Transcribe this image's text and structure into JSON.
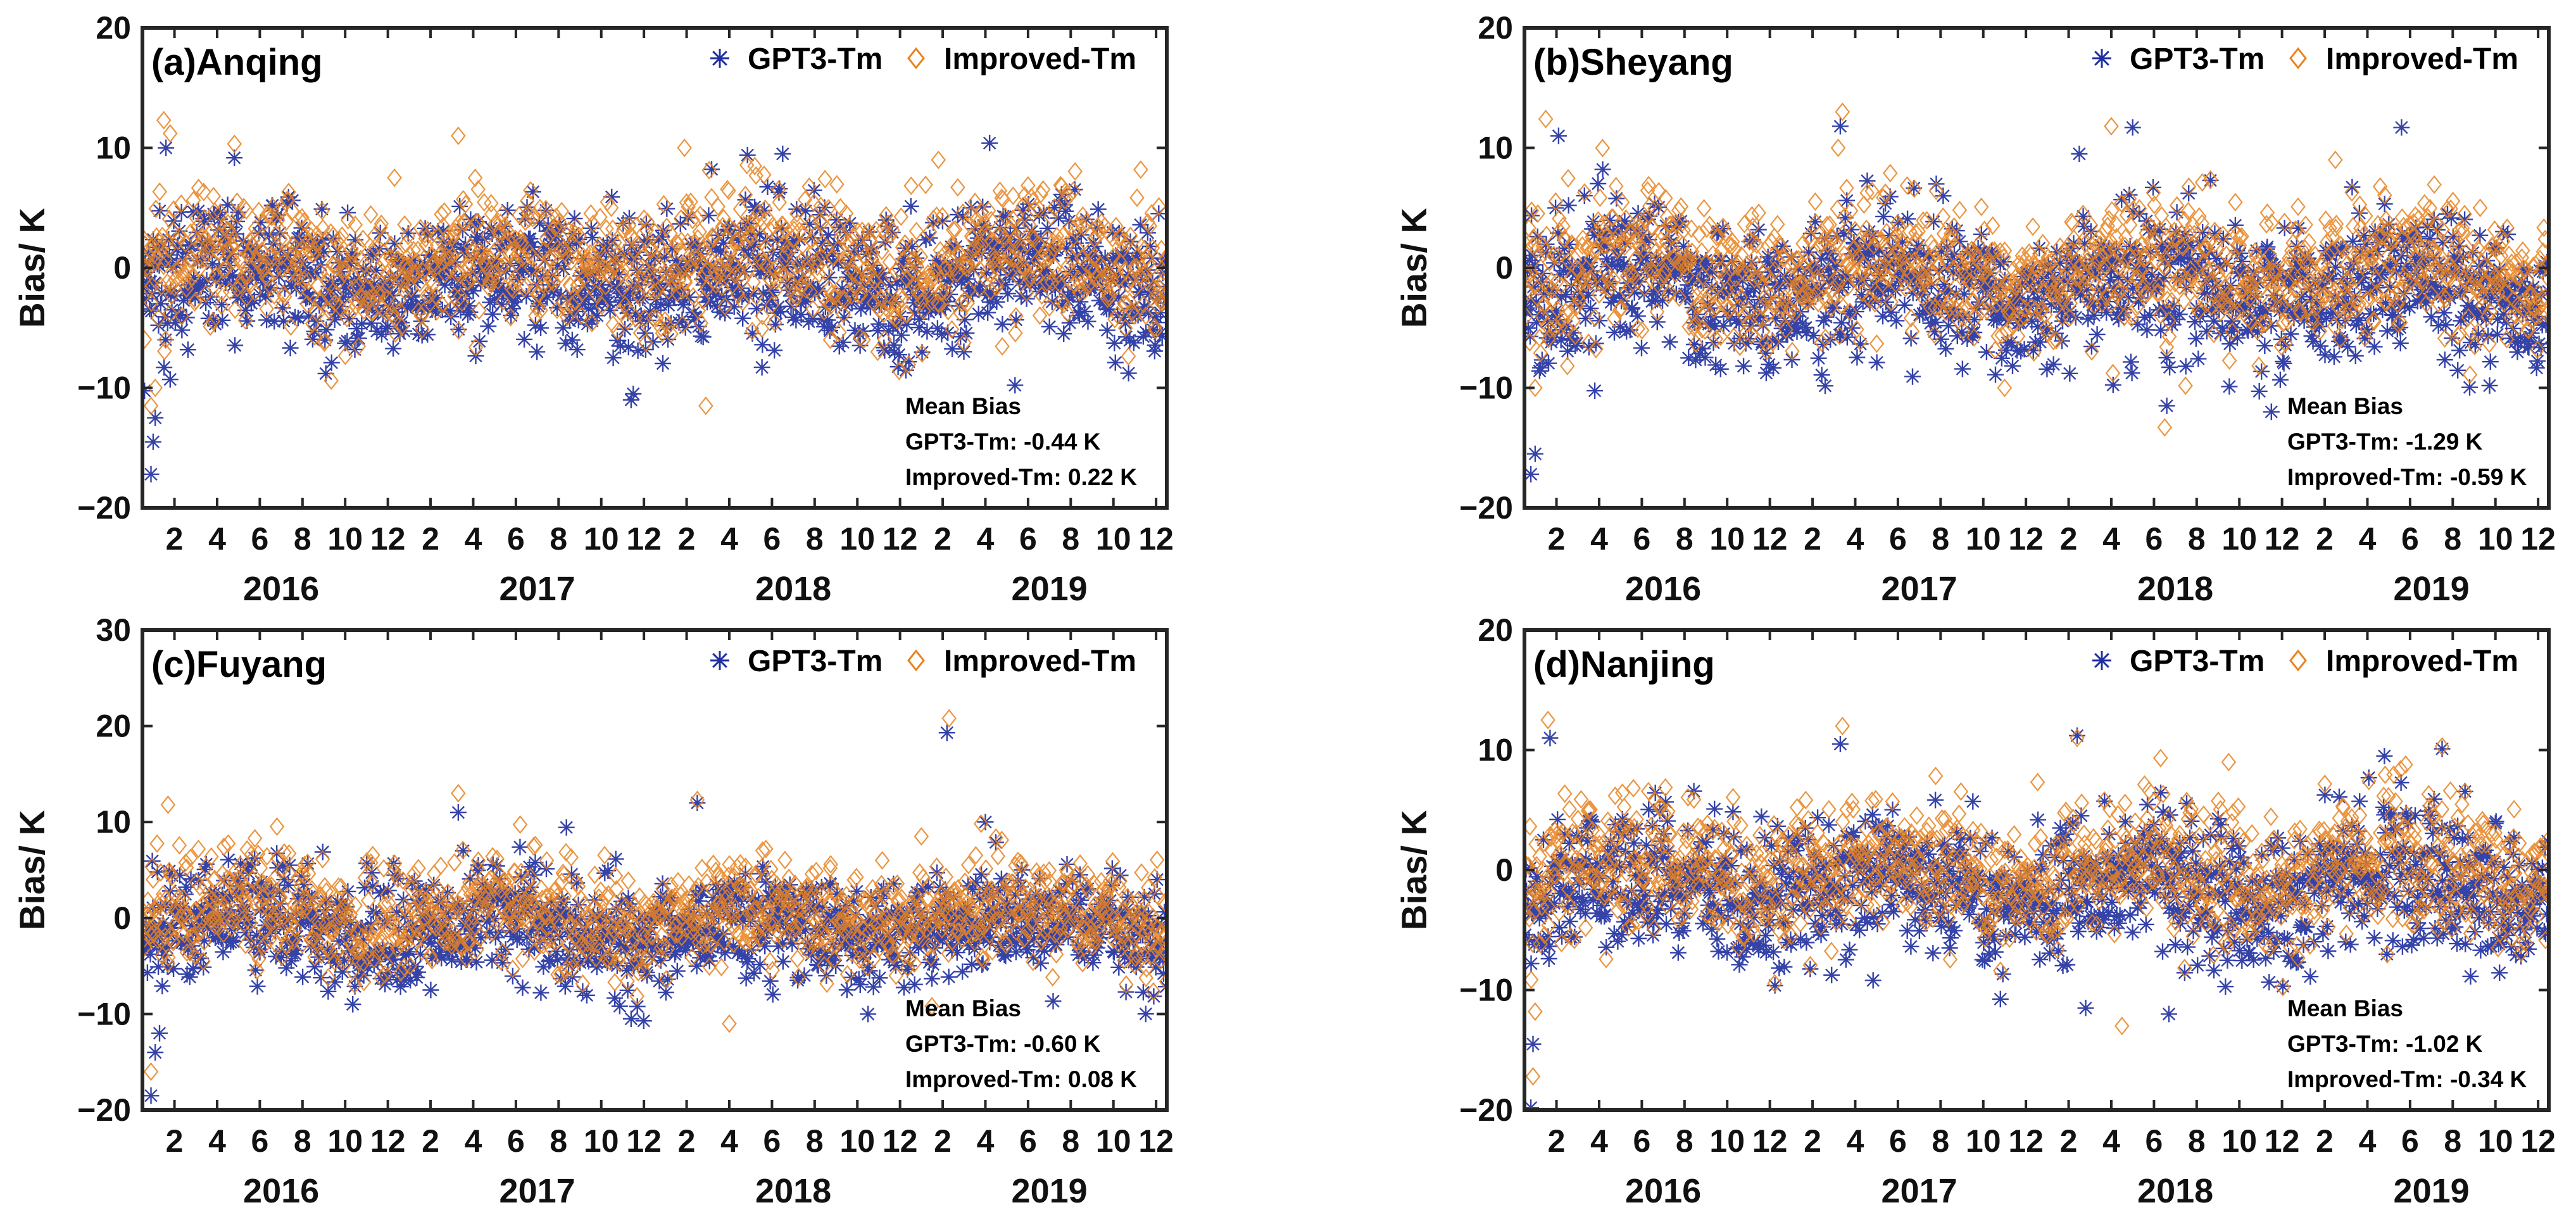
{
  "figure": {
    "series_colors": {
      "GPT3-Tm": "#1f2f9e",
      "Improved-Tm": "#e8821e"
    }
  },
  "chart_data": [
    {
      "type": "scatter",
      "title": "(a)Anqing",
      "ylabel": "Bias/ K",
      "ylim": [
        -20,
        20
      ],
      "yticks": [
        -20,
        -10,
        0,
        10,
        20
      ],
      "ytick_labels": [
        "−20",
        "−10",
        "0",
        "10",
        "20"
      ],
      "xlim": [
        0,
        48
      ],
      "month_ticks": [
        "2",
        "4",
        "6",
        "8",
        "10",
        "12",
        "2",
        "4",
        "6",
        "8",
        "10",
        "12",
        "2",
        "4",
        "6",
        "8",
        "10",
        "12",
        "2",
        "4",
        "6",
        "8",
        "10",
        "12"
      ],
      "years": [
        "2016",
        "2017",
        "2018",
        "2019"
      ],
      "legend": [
        "GPT3-Tm",
        "Improved-Tm"
      ],
      "annotation": [
        "Mean Bias",
        "GPT3-Tm: -0.44 K",
        "Improved-Tm: 0.22 K"
      ],
      "series": [
        {
          "name": "GPT3-Tm",
          "marker": "asterisk",
          "mean_bias": -0.44,
          "spread": 3.3,
          "extremes": [
            [
              0.4,
              -17.2
            ],
            [
              0.5,
              -14.5
            ],
            [
              0.6,
              -12.5
            ],
            [
              1.1,
              10.0
            ],
            [
              1.3,
              -9.3
            ],
            [
              22.9,
              -11.0
            ],
            [
              23.0,
              -10.5
            ],
            [
              30.0,
              9.5
            ],
            [
              39.7,
              10.4
            ]
          ]
        },
        {
          "name": "Improved-Tm",
          "marker": "diamond",
          "mean_bias": 0.22,
          "spread": 3.3,
          "extremes": [
            [
              0.4,
              -11.5
            ],
            [
              0.6,
              -10.0
            ],
            [
              1.0,
              12.3
            ],
            [
              1.3,
              11.2
            ],
            [
              14.8,
              11.0
            ],
            [
              25.4,
              10.0
            ],
            [
              26.4,
              -11.5
            ],
            [
              37.3,
              9.0
            ],
            [
              40.8,
              6.0
            ]
          ]
        }
      ]
    },
    {
      "type": "scatter",
      "title": "(b)Sheyang",
      "ylabel": "Bias/ K",
      "ylim": [
        -20,
        20
      ],
      "yticks": [
        -20,
        -10,
        0,
        10,
        20
      ],
      "ytick_labels": [
        "−20",
        "−10",
        "0",
        "10",
        "20"
      ],
      "xlim": [
        0,
        48
      ],
      "month_ticks": [
        "2",
        "4",
        "6",
        "8",
        "10",
        "12",
        "2",
        "4",
        "6",
        "8",
        "10",
        "12",
        "2",
        "4",
        "6",
        "8",
        "10",
        "12",
        "2",
        "4",
        "6",
        "8",
        "10",
        "12"
      ],
      "years": [
        "2016",
        "2017",
        "2018",
        "2019"
      ],
      "legend": [
        "GPT3-Tm",
        "Improved-Tm"
      ],
      "annotation": [
        "Mean Bias",
        "GPT3-Tm: -1.29 K",
        "Improved-Tm: -0.59 K"
      ],
      "series": [
        {
          "name": "GPT3-Tm",
          "marker": "asterisk",
          "mean_bias": -1.29,
          "spread": 3.4,
          "extremes": [
            [
              0.3,
              -17.2
            ],
            [
              0.5,
              -15.5
            ],
            [
              1.6,
              11.0
            ],
            [
              14.8,
              11.8
            ],
            [
              26.0,
              9.5
            ],
            [
              28.5,
              11.7
            ],
            [
              30.1,
              -11.5
            ],
            [
              35.0,
              -12.0
            ],
            [
              41.1,
              11.7
            ]
          ]
        },
        {
          "name": "Improved-Tm",
          "marker": "diamond",
          "mean_bias": -0.59,
          "spread": 3.3,
          "extremes": [
            [
              0.5,
              -10.0
            ],
            [
              1.0,
              12.4
            ],
            [
              14.9,
              13.0
            ],
            [
              14.7,
              10.0
            ],
            [
              27.5,
              11.8
            ],
            [
              30.0,
              -13.3
            ],
            [
              38.0,
              9.0
            ],
            [
              22.5,
              -10.0
            ]
          ]
        }
      ]
    },
    {
      "type": "scatter",
      "title": "(c)Fuyang",
      "ylabel": "Bias/ K",
      "ylim": [
        -20,
        30
      ],
      "yticks": [
        -20,
        -10,
        0,
        10,
        20,
        30
      ],
      "ytick_labels": [
        "−20",
        "−10",
        "0",
        "10",
        "20",
        "30"
      ],
      "xlim": [
        0,
        48
      ],
      "month_ticks": [
        "2",
        "4",
        "6",
        "8",
        "10",
        "12",
        "2",
        "4",
        "6",
        "8",
        "10",
        "12",
        "2",
        "4",
        "6",
        "8",
        "10",
        "12",
        "2",
        "4",
        "6",
        "8",
        "10",
        "12"
      ],
      "years": [
        "2016",
        "2017",
        "2018",
        "2019"
      ],
      "legend": [
        "GPT3-Tm",
        "Improved-Tm"
      ],
      "annotation": [
        "Mean Bias",
        "GPT3-Tm: -0.60 K",
        "Improved-Tm: 0.08 K"
      ],
      "series": [
        {
          "name": "GPT3-Tm",
          "marker": "asterisk",
          "mean_bias": -0.6,
          "spread": 3.2,
          "extremes": [
            [
              0.4,
              -18.5
            ],
            [
              0.6,
              -14.0
            ],
            [
              0.8,
              -12.0
            ],
            [
              14.8,
              11.0
            ],
            [
              26.0,
              12.0
            ],
            [
              37.7,
              19.3
            ],
            [
              39.5,
              10.0
            ],
            [
              22.9,
              -10.5
            ],
            [
              34.0,
              -10.0
            ]
          ]
        },
        {
          "name": "Improved-Tm",
          "marker": "diamond",
          "mean_bias": 0.08,
          "spread": 3.2,
          "extremes": [
            [
              0.4,
              -16.0
            ],
            [
              1.2,
              11.8
            ],
            [
              14.8,
              13.0
            ],
            [
              26.0,
              12.3
            ],
            [
              37.8,
              20.8
            ],
            [
              27.5,
              -11.0
            ],
            [
              36.5,
              8.5
            ]
          ]
        }
      ]
    },
    {
      "type": "scatter",
      "title": "(d)Nanjing",
      "ylabel": "Bias/ K",
      "ylim": [
        -20,
        20
      ],
      "yticks": [
        -20,
        -10,
        0,
        10,
        20
      ],
      "ytick_labels": [
        "−20",
        "−10",
        "0",
        "10",
        "20"
      ],
      "xlim": [
        0,
        48
      ],
      "month_ticks": [
        "2",
        "4",
        "6",
        "8",
        "10",
        "12",
        "2",
        "4",
        "6",
        "8",
        "10",
        "12",
        "2",
        "4",
        "6",
        "8",
        "10",
        "12",
        "2",
        "4",
        "6",
        "8",
        "10",
        "12"
      ],
      "years": [
        "2016",
        "2017",
        "2018",
        "2019"
      ],
      "legend": [
        "GPT3-Tm",
        "Improved-Tm"
      ],
      "annotation": [
        "Mean Bias",
        "GPT3-Tm: -1.02 K",
        "Improved-Tm: -0.34 K"
      ],
      "series": [
        {
          "name": "GPT3-Tm",
          "marker": "asterisk",
          "mean_bias": -1.02,
          "spread": 3.4,
          "extremes": [
            [
              0.3,
              -19.8
            ],
            [
              0.4,
              -14.5
            ],
            [
              1.2,
              11.0
            ],
            [
              14.8,
              10.5
            ],
            [
              25.9,
              11.2
            ],
            [
              30.2,
              -12.0
            ],
            [
              40.3,
              9.5
            ],
            [
              43.0,
              10.1
            ],
            [
              26.3,
              -11.5
            ]
          ]
        },
        {
          "name": "Improved-Tm",
          "marker": "diamond",
          "mean_bias": -0.34,
          "spread": 3.3,
          "extremes": [
            [
              0.4,
              -17.2
            ],
            [
              0.5,
              -11.8
            ],
            [
              1.1,
              12.5
            ],
            [
              14.9,
              12.0
            ],
            [
              25.9,
              11.0
            ],
            [
              28.0,
              -13.0
            ],
            [
              43.0,
              10.3
            ],
            [
              33.0,
              9.0
            ]
          ]
        }
      ]
    }
  ]
}
